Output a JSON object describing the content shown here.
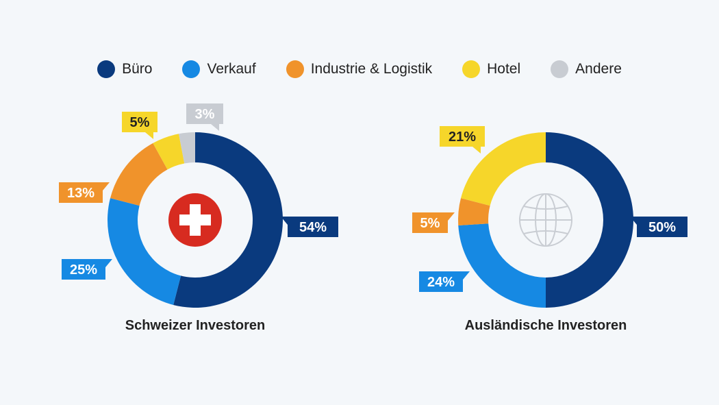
{
  "legend": [
    {
      "label": "Büro",
      "color": "#0a3a7e"
    },
    {
      "label": "Verkauf",
      "color": "#1689e3"
    },
    {
      "label": "Industrie & Logistik",
      "color": "#f0932b"
    },
    {
      "label": "Hotel",
      "color": "#f6d62a"
    },
    {
      "label": "Andere",
      "color": "#c8ccd2"
    }
  ],
  "chart_data": [
    {
      "type": "pie",
      "title": "Schweizer Investoren",
      "center_icon": "swiss-flag-icon",
      "categories": [
        "Büro",
        "Verkauf",
        "Industrie & Logistik",
        "Hotel",
        "Andere"
      ],
      "values": [
        54,
        25,
        13,
        5,
        3
      ],
      "labels": [
        "54%",
        "25%",
        "13%",
        "5%",
        "3%"
      ]
    },
    {
      "type": "pie",
      "title": "Ausländische Investoren",
      "center_icon": "globe-icon",
      "categories": [
        "Büro",
        "Verkauf",
        "Industrie & Logistik",
        "Hotel"
      ],
      "values": [
        50,
        24,
        5,
        21
      ],
      "labels": [
        "50%",
        "24%",
        "5%",
        "21%"
      ]
    }
  ]
}
